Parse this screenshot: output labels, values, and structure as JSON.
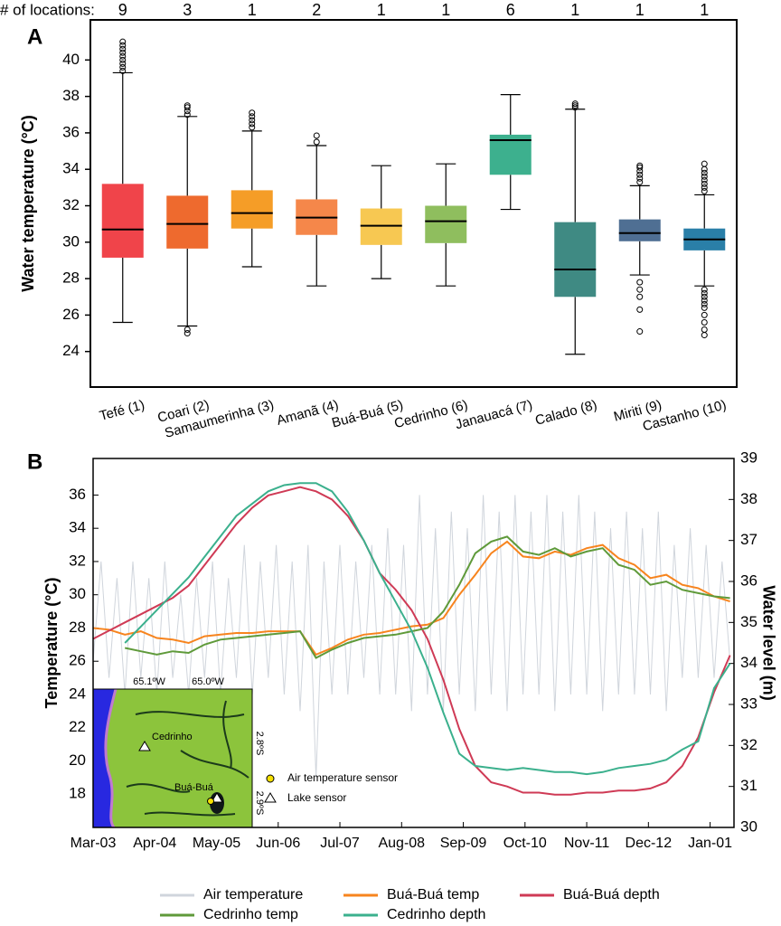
{
  "chart_data": [
    {
      "type": "box",
      "panel": "A",
      "ylabel": "Water temperature (°C)",
      "counts_label": "# of locations:",
      "counts": [
        9,
        3,
        1,
        2,
        1,
        1,
        6,
        1,
        1,
        1
      ],
      "categories": [
        "Tefé (1)",
        "Coari (2)",
        "Samaumerinha (3)",
        "Amanã (4)",
        "Buá-Buá (5)",
        "Cedrinho (6)",
        "Janauacá (7)",
        "Calado (8)",
        "Miriti (9)",
        "Castanho (10)"
      ],
      "boxes": [
        {
          "whislo": 25.6,
          "q1": 29.15,
          "med": 30.7,
          "q3": 33.2,
          "whishi": 39.3,
          "color": "#f0444a",
          "fliers": [
            39.4,
            39.6,
            39.8,
            40.0,
            40.2,
            40.4,
            40.6,
            40.8,
            41.0
          ]
        },
        {
          "whislo": 25.4,
          "q1": 29.65,
          "med": 31.0,
          "q3": 32.55,
          "whishi": 36.9,
          "color": "#ee6a2e",
          "fliers": [
            37.0,
            37.2,
            37.4,
            37.5,
            25.2,
            25.0
          ]
        },
        {
          "whislo": 28.65,
          "q1": 30.75,
          "med": 31.6,
          "q3": 32.85,
          "whishi": 36.1,
          "color": "#f59d27",
          "fliers": [
            36.3,
            36.5,
            36.7,
            36.9,
            37.1
          ]
        },
        {
          "whislo": 27.6,
          "q1": 30.4,
          "med": 31.35,
          "q3": 32.35,
          "whishi": 35.3,
          "color": "#f5874a",
          "fliers": [
            35.5,
            35.85
          ]
        },
        {
          "whislo": 28.0,
          "q1": 29.85,
          "med": 30.9,
          "q3": 31.85,
          "whishi": 34.2,
          "color": "#f7c852"
        },
        {
          "whislo": 27.6,
          "q1": 29.95,
          "med": 31.15,
          "q3": 32.0,
          "whishi": 34.3,
          "color": "#8fbe5e"
        },
        {
          "whislo": 31.8,
          "q1": 33.7,
          "med": 35.6,
          "q3": 35.9,
          "whishi": 38.1,
          "color": "#3db08e"
        },
        {
          "whislo": 23.85,
          "q1": 27.0,
          "med": 28.5,
          "q3": 31.1,
          "whishi": 37.3,
          "color": "#3f8a83",
          "fliers": [
            37.4,
            37.5,
            37.6
          ]
        },
        {
          "whislo": 28.2,
          "q1": 30.05,
          "med": 30.5,
          "q3": 31.25,
          "whishi": 33.1,
          "color": "#4f6f93",
          "fliers": [
            33.3,
            33.5,
            33.7,
            33.9,
            34.1,
            34.2,
            27.8,
            27.4,
            27.0,
            26.3,
            25.1
          ]
        },
        {
          "whislo": 27.6,
          "q1": 29.55,
          "med": 30.15,
          "q3": 30.75,
          "whishi": 32.6,
          "color": "#2a7fa8",
          "fliers": [
            32.8,
            33.0,
            33.2,
            33.4,
            33.6,
            33.8,
            34.0,
            34.3,
            27.4,
            27.2,
            27.0,
            26.8,
            26.6,
            26.4,
            26.0,
            25.6,
            25.2,
            24.9
          ]
        }
      ],
      "ylim": [
        22.05,
        42.2
      ],
      "yticks": [
        24,
        26,
        28,
        30,
        32,
        34,
        36,
        38,
        40
      ]
    },
    {
      "type": "line",
      "panel": "B",
      "ylabel": "Temperature (°C)",
      "y2label": "Water level (m)",
      "xlim": [
        0,
        322
      ],
      "xticks": [
        {
          "value": 0,
          "label": "Mar-03"
        },
        {
          "value": 31,
          "label": "Apr-04"
        },
        {
          "value": 62,
          "label": "May-05"
        },
        {
          "value": 93,
          "label": "Jun-06"
        },
        {
          "value": 124,
          "label": "Jul-07"
        },
        {
          "value": 155,
          "label": "Aug-08"
        },
        {
          "value": 186,
          "label": "Sep-09"
        },
        {
          "value": 217,
          "label": "Oct-10"
        },
        {
          "value": 248,
          "label": "Nov-11"
        },
        {
          "value": 279,
          "label": "Dec-12"
        },
        {
          "value": 310,
          "label": "Jan-01"
        }
      ],
      "ylim": [
        16,
        38.2
      ],
      "yticks": [
        18,
        20,
        22,
        24,
        26,
        28,
        30,
        32,
        34,
        36
      ],
      "y2lim": [
        30,
        39
      ],
      "y2ticks": [
        30,
        31,
        32,
        33,
        34,
        35,
        36,
        37,
        38,
        39
      ],
      "series": [
        {
          "name": "Air temperature",
          "color": "#d0d5dc",
          "x": [
            0,
            4,
            8,
            12,
            16,
            20,
            24,
            28,
            32,
            36,
            40,
            44,
            48,
            52,
            56,
            60,
            64,
            68,
            72,
            76,
            80,
            84,
            88,
            92,
            96,
            100,
            104,
            108,
            112,
            116,
            120,
            124,
            128,
            132,
            136,
            140,
            144,
            148,
            152,
            156,
            160,
            164,
            168,
            172,
            176,
            180,
            184,
            188,
            192,
            196,
            200,
            204,
            208,
            212,
            216,
            220,
            224,
            228,
            232,
            236,
            240,
            244,
            248,
            252,
            256,
            260,
            264,
            268,
            272,
            276,
            280,
            284,
            288,
            292,
            296,
            300,
            304,
            308,
            312,
            316,
            320
          ],
          "values": [
            26,
            32,
            25,
            31,
            24,
            32,
            25,
            31,
            24,
            32,
            25,
            30,
            24,
            31,
            25,
            32,
            24,
            31,
            25,
            33,
            24,
            32,
            25,
            33,
            24,
            32,
            23,
            33,
            19,
            32,
            24,
            33,
            24,
            32,
            25,
            33,
            24,
            34,
            24,
            33,
            23,
            36,
            24,
            34,
            23,
            35,
            24,
            34,
            23,
            36,
            24,
            35,
            23,
            36,
            24,
            35,
            24,
            36,
            23,
            35,
            24,
            36,
            24,
            35,
            23,
            34,
            24,
            35,
            24,
            34,
            24,
            35,
            23,
            33,
            25,
            34,
            25,
            33,
            25,
            32,
            26
          ]
        },
        {
          "name": "Buá-Buá temp",
          "color": "#f7841e",
          "x": [
            0,
            8,
            16,
            24,
            32,
            40,
            48,
            56,
            64,
            72,
            80,
            88,
            96,
            104,
            112,
            120,
            128,
            136,
            144,
            152,
            160,
            168,
            176,
            184,
            192,
            200,
            208,
            216,
            224,
            232,
            240,
            248,
            256,
            264,
            272,
            280,
            288,
            296,
            304,
            312,
            320
          ],
          "values": [
            28.0,
            27.9,
            27.6,
            27.8,
            27.4,
            27.3,
            27.1,
            27.5,
            27.6,
            27.7,
            27.7,
            27.8,
            27.8,
            27.8,
            26.4,
            26.8,
            27.3,
            27.6,
            27.7,
            27.9,
            28.1,
            28.2,
            28.6,
            30.0,
            31.2,
            32.5,
            33.2,
            32.3,
            32.2,
            32.6,
            32.4,
            32.8,
            33.0,
            32.2,
            31.8,
            31.0,
            31.2,
            30.6,
            30.4,
            29.9,
            29.6
          ]
        },
        {
          "name": "Buá-Buá depth",
          "color": "#cf3a55",
          "axis": "y2",
          "x": [
            0,
            8,
            16,
            24,
            32,
            40,
            48,
            56,
            64,
            72,
            80,
            88,
            96,
            104,
            112,
            120,
            128,
            136,
            144,
            152,
            160,
            168,
            176,
            184,
            192,
            200,
            208,
            216,
            224,
            232,
            240,
            248,
            256,
            264,
            272,
            280,
            288,
            296,
            304,
            312,
            320
          ],
          "values": [
            34.6,
            34.8,
            35.0,
            35.2,
            35.4,
            35.6,
            35.9,
            36.4,
            36.9,
            37.4,
            37.8,
            38.1,
            38.2,
            38.3,
            38.2,
            38.0,
            37.6,
            37.0,
            36.2,
            35.8,
            35.3,
            34.6,
            33.6,
            32.4,
            31.5,
            31.1,
            31.0,
            30.85,
            30.85,
            30.8,
            30.8,
            30.85,
            30.85,
            30.9,
            30.9,
            30.95,
            31.1,
            31.5,
            32.2,
            33.3,
            34.2
          ]
        },
        {
          "name": "Cedrinho temp",
          "color": "#5f9a3a",
          "x": [
            0,
            8,
            16,
            24,
            32,
            40,
            48,
            56,
            64,
            72,
            80,
            88,
            96,
            104,
            112,
            120,
            128,
            136,
            144,
            152,
            160,
            168,
            176,
            184,
            192,
            200,
            208,
            216,
            224,
            232,
            240,
            248,
            256,
            264,
            272,
            280,
            288,
            296,
            304,
            312,
            320
          ],
          "values": [
            null,
            null,
            26.8,
            26.6,
            26.4,
            26.6,
            26.5,
            27.0,
            27.3,
            27.4,
            27.5,
            27.6,
            27.7,
            27.8,
            26.2,
            26.7,
            27.1,
            27.4,
            27.5,
            27.6,
            27.8,
            28.0,
            29.0,
            30.6,
            32.5,
            33.2,
            33.5,
            32.6,
            32.4,
            32.8,
            32.3,
            32.6,
            32.8,
            31.8,
            31.5,
            30.6,
            30.8,
            30.3,
            30.1,
            29.9,
            29.8
          ]
        },
        {
          "name": "Cedrinho depth",
          "color": "#3bb08d",
          "axis": "y2",
          "x": [
            0,
            8,
            16,
            24,
            32,
            40,
            48,
            56,
            64,
            72,
            80,
            88,
            96,
            104,
            112,
            120,
            128,
            136,
            144,
            152,
            160,
            168,
            176,
            184,
            192,
            200,
            208,
            216,
            224,
            232,
            240,
            248,
            256,
            264,
            272,
            280,
            288,
            296,
            304,
            312,
            320
          ],
          "values": [
            null,
            null,
            34.5,
            34.9,
            35.3,
            35.7,
            36.1,
            36.6,
            37.1,
            37.6,
            37.9,
            38.2,
            38.35,
            38.4,
            38.4,
            38.2,
            37.7,
            37.0,
            36.2,
            35.5,
            34.8,
            33.9,
            32.8,
            31.8,
            31.5,
            31.45,
            31.4,
            31.45,
            31.4,
            31.35,
            31.35,
            31.3,
            31.35,
            31.45,
            31.5,
            31.55,
            31.65,
            31.9,
            32.1,
            33.4,
            34.0
          ]
        }
      ],
      "inset": {
        "lon_labels": [
          "65.1ºW",
          "65.0ºW"
        ],
        "lat_labels": [
          "2.8ºS",
          "2.9ºS"
        ],
        "sites": [
          "Cedrinho",
          "Buá-Buá"
        ],
        "legend": [
          "Air temperature sensor",
          "Lake sensor"
        ]
      }
    }
  ]
}
